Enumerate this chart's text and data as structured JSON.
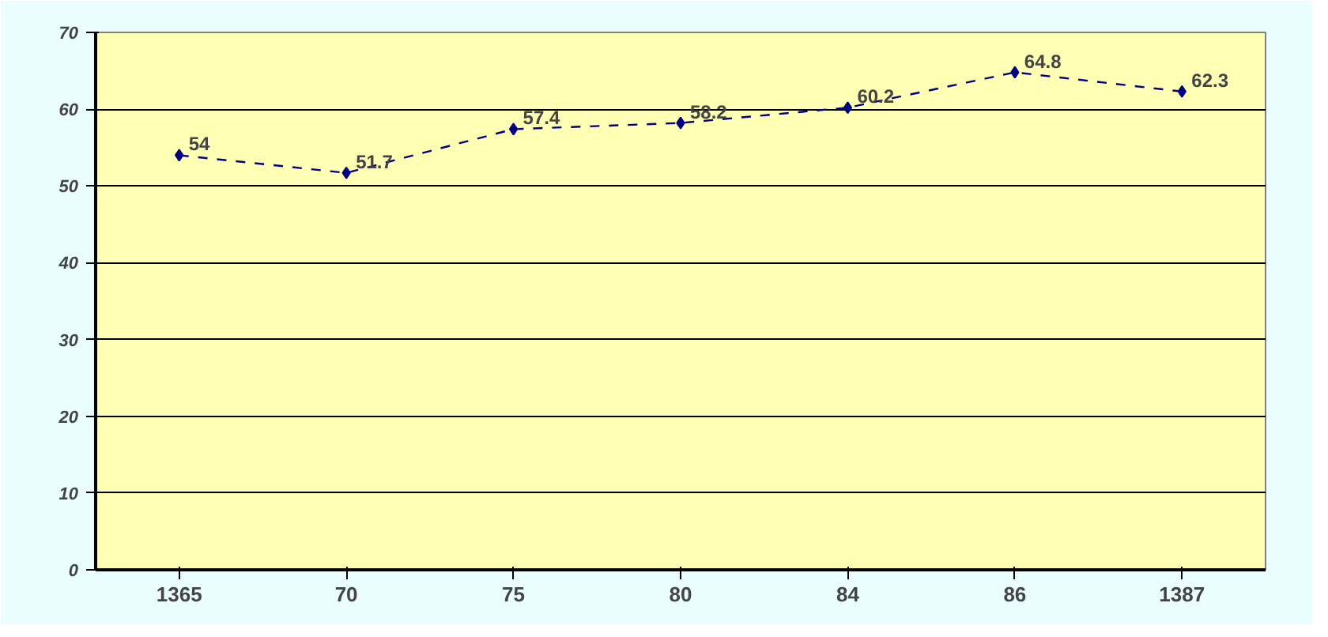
{
  "chart_data": {
    "type": "line",
    "categories": [
      "1365",
      "70",
      "75",
      "80",
      "84",
      "86",
      "1387"
    ],
    "series": [
      {
        "color": "#000080",
        "values": [
          54,
          51.7,
          57.4,
          58.2,
          60.2,
          64.8,
          62.3
        ]
      }
    ],
    "ylim": [
      0,
      70
    ],
    "yticks": [
      0,
      10,
      20,
      30,
      40,
      50,
      60,
      70
    ],
    "grid": "y",
    "data_labels": true,
    "marker": "diamond",
    "line_style": "dashed"
  }
}
